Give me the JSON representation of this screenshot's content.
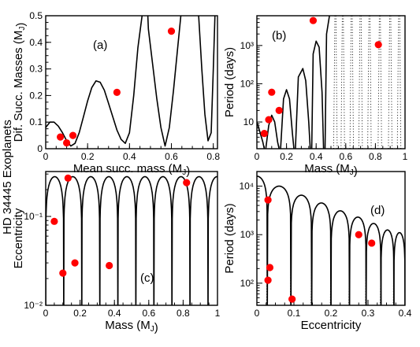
{
  "figure": {
    "side_title": "HD 34445 Exoplanets",
    "marker_color": "#ff0000"
  },
  "chart_data": [
    {
      "id": "a",
      "type": "scatter",
      "panel_label": "(a)",
      "xlabel": "Mean succ. mass (M_J)",
      "ylabel": "Dif. Succ. Masses (M_J)",
      "xscale": "linear",
      "yscale": "linear",
      "xlim": [
        0,
        0.82
      ],
      "ylim": [
        0,
        0.5
      ],
      "xticks": [
        0,
        0.2,
        0.4,
        0.6,
        0.8
      ],
      "xticklabels": [
        "0",
        "0.2",
        "0.4",
        "0.6",
        "0.8"
      ],
      "yticks": [
        0,
        0.1,
        0.2,
        0.3,
        0.4,
        0.5
      ],
      "yticklabels": [
        "0",
        "0.1",
        "0.2",
        "0.3",
        "0.4",
        "0.5"
      ],
      "points": [
        [
          0.07,
          0.044
        ],
        [
          0.1,
          0.022
        ],
        [
          0.13,
          0.05
        ],
        [
          0.34,
          0.212
        ],
        [
          0.6,
          0.442
        ]
      ],
      "curve": {
        "style": "solid",
        "points": [
          [
            0,
            0.08
          ],
          [
            0.02,
            0.1
          ],
          [
            0.04,
            0.1
          ],
          [
            0.06,
            0.085
          ],
          [
            0.08,
            0.06
          ],
          [
            0.1,
            0.03
          ],
          [
            0.12,
            0.01
          ],
          [
            0.14,
            0.02
          ],
          [
            0.16,
            0.06
          ],
          [
            0.18,
            0.12
          ],
          [
            0.2,
            0.18
          ],
          [
            0.22,
            0.23
          ],
          [
            0.24,
            0.255
          ],
          [
            0.26,
            0.25
          ],
          [
            0.28,
            0.22
          ],
          [
            0.3,
            0.17
          ],
          [
            0.32,
            0.12
          ],
          [
            0.34,
            0.07
          ],
          [
            0.36,
            0.035
          ],
          [
            0.38,
            0.02
          ],
          [
            0.4,
            0.06
          ],
          [
            0.42,
            0.2
          ],
          [
            0.44,
            0.38
          ],
          [
            0.46,
            0.5
          ],
          [
            0.48,
            0.54
          ],
          [
            null,
            null
          ],
          [
            0.485,
            0.55
          ],
          [
            0.49,
            0.45
          ],
          [
            0.51,
            0.32
          ],
          [
            0.53,
            0.19
          ],
          [
            0.55,
            0.08
          ],
          [
            0.57,
            0.01
          ],
          [
            0.59,
            0.08
          ],
          [
            0.61,
            0.22
          ],
          [
            0.63,
            0.38
          ],
          [
            0.645,
            0.5
          ],
          [
            0.65,
            0.55
          ],
          [
            null,
            null
          ],
          [
            0.725,
            0.55
          ],
          [
            0.73,
            0.5
          ],
          [
            0.745,
            0.3
          ],
          [
            0.76,
            0.13
          ],
          [
            0.775,
            0.03
          ],
          [
            0.79,
            0.06
          ],
          [
            0.8,
            0.3
          ],
          [
            0.81,
            0.55
          ]
        ]
      }
    },
    {
      "id": "b",
      "type": "scatter",
      "panel_label": "(b)",
      "xlabel": "Mass (M_J)",
      "ylabel": "Period (days)",
      "xscale": "linear",
      "yscale": "log",
      "xlim": [
        0,
        1
      ],
      "ylim": [
        2,
        6000
      ],
      "xticks": [
        0,
        0.2,
        0.4,
        0.6,
        0.8,
        1
      ],
      "xticklabels": [
        "0",
        "0.2",
        "0.4",
        "0.6",
        "0.8",
        "1"
      ],
      "yticks": [
        10,
        100,
        1000
      ],
      "yticklabels": [
        "10",
        "10²",
        "10³"
      ],
      "points": [
        [
          0.05,
          5
        ],
        [
          0.08,
          11.5
        ],
        [
          0.1,
          60
        ],
        [
          0.15,
          20
        ],
        [
          0.38,
          4500
        ],
        [
          0.82,
          1050
        ]
      ],
      "curve": {
        "style": "solid",
        "points": [
          [
            0,
            10
          ],
          [
            0.02,
            5.5
          ],
          [
            0.04,
            3
          ],
          [
            0.05,
            2
          ],
          [
            null,
            null
          ],
          [
            0.06,
            2
          ],
          [
            0.08,
            8
          ],
          [
            0.1,
            15
          ],
          [
            0.12,
            10
          ],
          [
            0.14,
            3
          ],
          [
            0.15,
            2
          ],
          [
            null,
            null
          ],
          [
            0.16,
            2
          ],
          [
            0.18,
            40
          ],
          [
            0.2,
            70
          ],
          [
            0.22,
            40
          ],
          [
            0.24,
            5
          ],
          [
            0.25,
            2
          ],
          [
            null,
            null
          ],
          [
            0.26,
            2
          ],
          [
            0.28,
            150
          ],
          [
            0.31,
            250
          ],
          [
            0.33,
            120
          ],
          [
            0.35,
            10
          ],
          [
            0.36,
            2
          ],
          [
            null,
            null
          ],
          [
            0.37,
            2
          ],
          [
            0.38,
            600
          ],
          [
            0.4,
            1300
          ],
          [
            0.42,
            900
          ],
          [
            0.44,
            60
          ],
          [
            0.45,
            2
          ],
          [
            null,
            null
          ],
          [
            0.46,
            2
          ],
          [
            0.47,
            2000
          ],
          [
            0.49,
            6000
          ]
        ]
      },
      "dotted_columns_x": [
        0.53,
        0.58,
        0.64,
        0.7,
        0.76,
        0.83,
        0.9,
        0.96
      ]
    },
    {
      "id": "c",
      "type": "scatter",
      "panel_label": "(c)",
      "xlabel": "Mass (M_J)",
      "ylabel": "Eccentricity",
      "xscale": "linear",
      "yscale": "log",
      "xlim": [
        0,
        1
      ],
      "ylim": [
        0.01,
        0.32
      ],
      "xticks": [
        0,
        0.2,
        0.4,
        0.6,
        0.8,
        1
      ],
      "xticklabels": [
        "0",
        "0.2",
        "0.4",
        "0.6",
        "0.8",
        "1"
      ],
      "yticks": [
        0.01,
        0.1
      ],
      "yticklabels": [
        "10⁻²",
        "10⁻¹"
      ],
      "points": [
        [
          0.05,
          0.088
        ],
        [
          0.13,
          0.27
        ],
        [
          0.1,
          0.023
        ],
        [
          0.17,
          0.03
        ],
        [
          0.37,
          0.028
        ],
        [
          0.82,
          0.24
        ]
      ],
      "curve": {
        "style": "solid",
        "period": 0.105,
        "offset": 0.0,
        "peak": 0.28
      }
    },
    {
      "id": "d",
      "type": "scatter",
      "panel_label": "(d)",
      "xlabel": "Eccentricity",
      "ylabel": "Period (days)",
      "xscale": "linear",
      "yscale": "log",
      "xlim": [
        0,
        0.4
      ],
      "ylim": [
        35,
        20000
      ],
      "xticks": [
        0,
        0.1,
        0.2,
        0.3,
        0.4
      ],
      "xticklabels": [
        "0",
        "0.1",
        "0.2",
        "0.3",
        "0.4"
      ],
      "yticks": [
        100,
        1000,
        10000
      ],
      "yticklabels": [
        "10²",
        "10³",
        "10⁴"
      ],
      "points": [
        [
          0.03,
          5200
        ],
        [
          0.035,
          210
        ],
        [
          0.03,
          115
        ],
        [
          0.095,
          47
        ],
        [
          0.275,
          1000
        ],
        [
          0.31,
          670
        ]
      ],
      "curve": {
        "style": "solid",
        "minima_x": [
          0.028,
          0.092,
          0.148,
          0.2,
          0.25,
          0.295,
          0.335,
          0.37
        ],
        "maxima_y": [
          16000,
          10000,
          6500,
          4500,
          3100,
          2300,
          1700,
          1250,
          1100
        ]
      }
    }
  ]
}
